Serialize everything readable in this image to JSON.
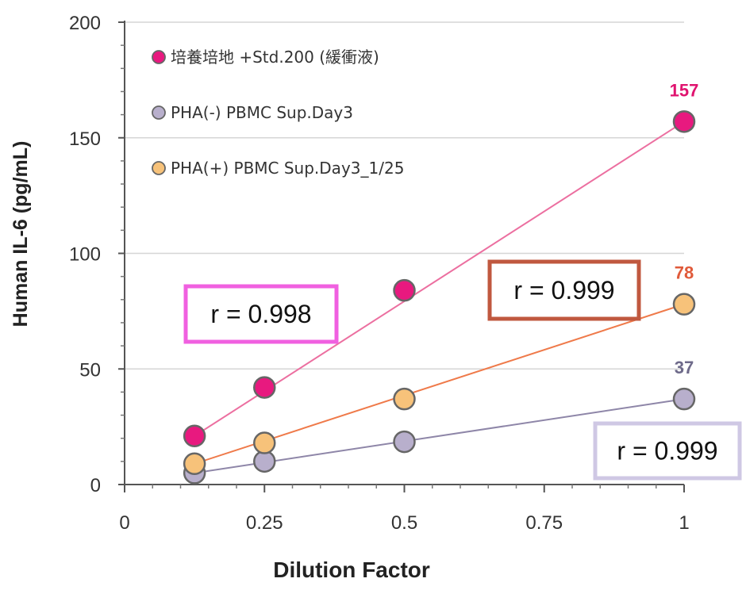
{
  "chart_data": {
    "type": "scatter",
    "xlabel": "Dilution Factor",
    "ylabel": "Human IL-6 (pg/mL)",
    "xlim": [
      0,
      1
    ],
    "ylim": [
      0,
      200
    ],
    "x_ticks": [
      "0",
      "0.25",
      "0.5",
      "0.75",
      "1"
    ],
    "y_ticks": [
      "0",
      "50",
      "100",
      "150",
      "200"
    ],
    "grid": "horizontal",
    "legend_position": "top-left",
    "series": [
      {
        "name": "培養培地 +Std.200 (緩衝液)",
        "color": "#e8197f",
        "line_color": "#ec6fa0",
        "points": [
          {
            "x": 0.125,
            "y": 21
          },
          {
            "x": 0.25,
            "y": 42
          },
          {
            "x": 0.5,
            "y": 84
          },
          {
            "x": 1,
            "y": 157
          }
        ],
        "end_label": "157",
        "r_label": "r = 0.998",
        "r_box_color": "#f060e0"
      },
      {
        "name": "PHA(-) PBMC Sup.Day3",
        "color": "#b8afcc",
        "line_color": "#8e86a8",
        "points": [
          {
            "x": 0.125,
            "y": 5
          },
          {
            "x": 0.25,
            "y": 10
          },
          {
            "x": 0.5,
            "y": 18.5
          },
          {
            "x": 1,
            "y": 37
          }
        ],
        "end_label": "37",
        "r_label": "r = 0.999",
        "r_box_color": "#cfc8e4"
      },
      {
        "name": "PHA(+) PBMC Sup.Day3_1/25",
        "color": "#f7c27a",
        "line_color": "#ef7a4a",
        "points": [
          {
            "x": 0.125,
            "y": 9
          },
          {
            "x": 0.25,
            "y": 18
          },
          {
            "x": 0.5,
            "y": 37
          },
          {
            "x": 1,
            "y": 78
          }
        ],
        "end_label": "78",
        "r_label": "r = 0.999",
        "r_box_color": "#c0583f"
      }
    ]
  }
}
